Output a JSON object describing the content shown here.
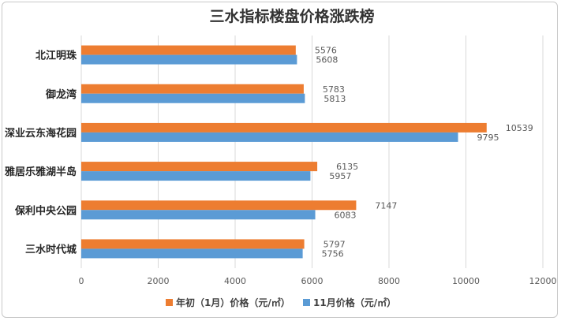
{
  "chart_data": {
    "type": "bar",
    "orientation": "horizontal",
    "title": "三水指标楼盘价格涨跌榜",
    "categories": [
      "北江明珠",
      "御龙湾",
      "深业云东海花园",
      "雅居乐雅湖半岛",
      "保利中央公园",
      "三水时代城"
    ],
    "series": [
      {
        "name": "年初（1月）价格（元/㎡）",
        "color": "#ed7d31",
        "values": [
          5576,
          5783,
          10539,
          6135,
          7147,
          5797
        ]
      },
      {
        "name": "11月价格（元/㎡）",
        "color": "#5b9bd5",
        "values": [
          5608,
          5813,
          9795,
          5957,
          6083,
          5756
        ]
      }
    ],
    "xlim": [
      0,
      12000
    ],
    "x_ticks": [
      0,
      2000,
      4000,
      6000,
      8000,
      10000,
      12000
    ],
    "grid": true,
    "legend": "bottom"
  }
}
